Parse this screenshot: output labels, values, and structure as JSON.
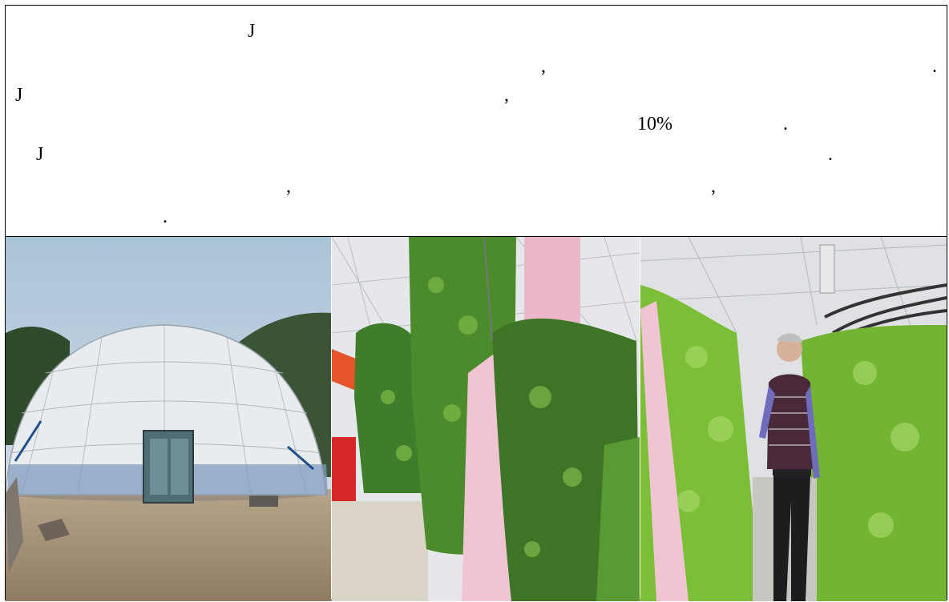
{
  "text_block": {
    "g1": "J",
    "g2": ",",
    "g3": ".",
    "g4": "J",
    "g5": ",",
    "g6": "10%",
    "g7": ".",
    "g8": "J",
    "g9": ".",
    "g10": ",",
    "g11": ",",
    "g12": "."
  },
  "photos": [
    {
      "subject": "dome-greenhouse"
    },
    {
      "subject": "vertical-garden-towers"
    },
    {
      "subject": "man-between-lettuce-walls"
    }
  ]
}
